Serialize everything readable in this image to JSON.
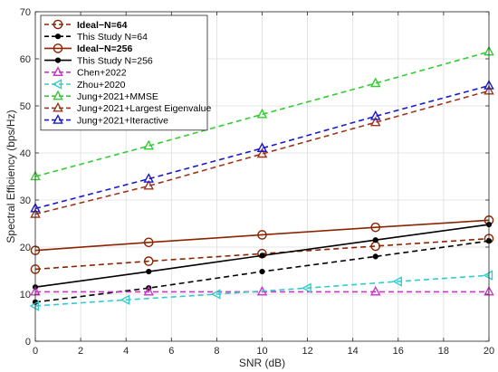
{
  "chart_data": {
    "type": "line",
    "title": "",
    "xlabel": "SNR (dB)",
    "ylabel": "Spectral Efficiency (bps/Hz)",
    "xlim": [
      0,
      20
    ],
    "ylim": [
      0,
      70
    ],
    "xticks": [
      0,
      2,
      4,
      6,
      8,
      10,
      12,
      14,
      16,
      18,
      20
    ],
    "yticks": [
      0,
      10,
      20,
      30,
      40,
      50,
      60,
      70
    ],
    "xtick_labels": [
      "0",
      "2",
      "4",
      "6",
      "8",
      "10",
      "12",
      "14",
      "16",
      "18",
      "20"
    ],
    "ytick_labels": [
      "0",
      "10",
      "20",
      "30",
      "40",
      "50",
      "60",
      "70"
    ],
    "grid": true,
    "legend_position": "top-left",
    "series": [
      {
        "name": "Ideal−N=64",
        "bold": true,
        "color": "#8B2500",
        "dash": "dashed",
        "marker": "circle",
        "x": [
          0,
          5,
          10,
          15,
          20
        ],
        "y": [
          15.3,
          17.0,
          18.6,
          20.2,
          21.8
        ]
      },
      {
        "name": "This Study N=64",
        "bold": false,
        "color": "#000000",
        "dash": "dashed",
        "marker": "dot",
        "x": [
          0,
          5,
          10,
          15,
          20
        ],
        "y": [
          8.3,
          11.3,
          14.8,
          18.0,
          21.3
        ]
      },
      {
        "name": "Ideal−N=256",
        "bold": true,
        "color": "#8B2500",
        "dash": "solid",
        "marker": "circle",
        "x": [
          0,
          5,
          10,
          15,
          20
        ],
        "y": [
          19.3,
          21.0,
          22.6,
          24.2,
          25.7
        ]
      },
      {
        "name": "This Study N=256",
        "bold": false,
        "color": "#000000",
        "dash": "solid",
        "marker": "dot",
        "x": [
          0,
          5,
          10,
          15,
          20
        ],
        "y": [
          11.5,
          14.8,
          18.2,
          21.5,
          24.8
        ]
      },
      {
        "name": "Chen+2022",
        "bold": false,
        "color": "#CC33CC",
        "dash": "dashed",
        "marker": "triangle-up",
        "x": [
          0,
          5,
          10,
          15,
          20
        ],
        "y": [
          10.5,
          10.5,
          10.5,
          10.5,
          10.5
        ]
      },
      {
        "name": "Zhou+2020",
        "bold": false,
        "color": "#33CCCC",
        "dash": "dashed",
        "marker": "triangle-left",
        "x": [
          0,
          4,
          8,
          12,
          16,
          20
        ],
        "y": [
          7.5,
          8.8,
          10.0,
          11.3,
          12.7,
          14.0
        ]
      },
      {
        "name": "Jung+2021+MMSE",
        "bold": false,
        "color": "#33CC33",
        "dash": "dashed",
        "marker": "triangle-up",
        "x": [
          0,
          5,
          10,
          15,
          20
        ],
        "y": [
          35.0,
          41.5,
          48.2,
          54.8,
          61.5
        ]
      },
      {
        "name": "Jung+2021+Largest Eigenvalue",
        "bold": false,
        "color": "#A0341C",
        "dash": "dashed",
        "marker": "triangle-up",
        "x": [
          0,
          5,
          10,
          15,
          20
        ],
        "y": [
          27.0,
          33.0,
          39.8,
          46.5,
          53.2
        ]
      },
      {
        "name": "Jung+2021+Iteractive",
        "bold": false,
        "color": "#1A1ACC",
        "dash": "dashed",
        "marker": "triangle-up",
        "x": [
          0,
          5,
          10,
          15,
          20
        ],
        "y": [
          28.2,
          34.5,
          41.0,
          47.8,
          54.3
        ]
      }
    ]
  }
}
